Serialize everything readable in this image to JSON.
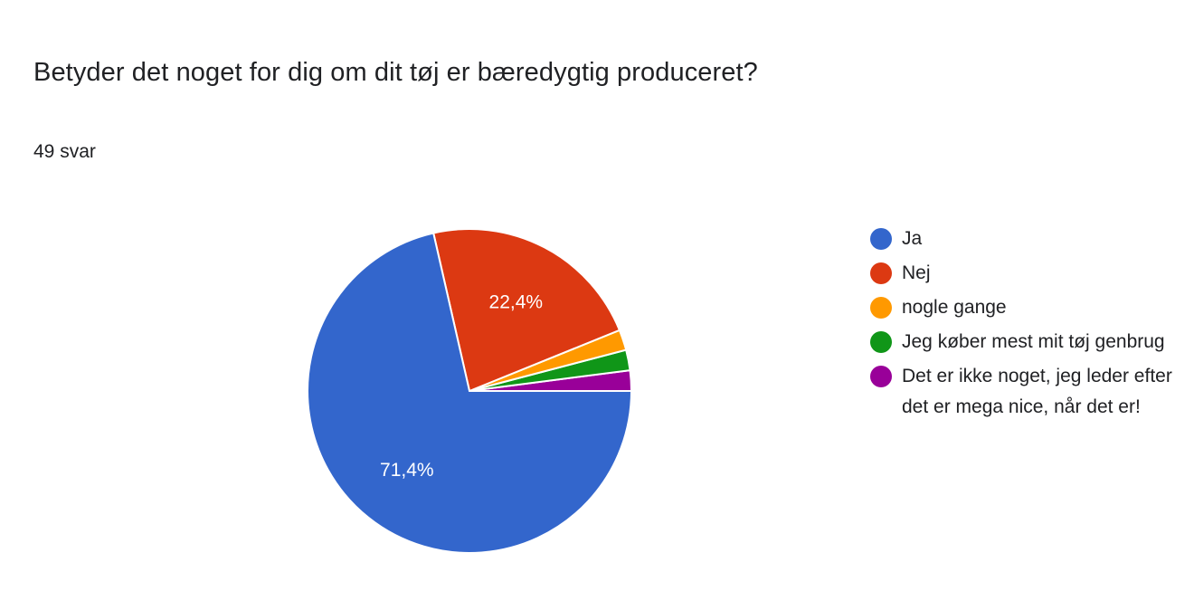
{
  "header": {
    "title": "Betyder det noget for dig om dit tøj er bæredygtig produceret?",
    "response_count": "49 svar"
  },
  "colors": {
    "ja": "#3366cc",
    "nej": "#dc3912",
    "nogle_gange": "#ff9900",
    "genbrug": "#109618",
    "ikke_noget": "#990099"
  },
  "chart_data": {
    "type": "pie",
    "title": "Betyder det noget for dig om dit tøj er bæredygtig produceret?",
    "total_responses": 49,
    "legend_position": "right",
    "slices": [
      {
        "label": "Ja",
        "value": 35,
        "percent": 71.4,
        "percent_label": "71,4%",
        "color": "#3366cc"
      },
      {
        "label": "Nej",
        "value": 11,
        "percent": 22.4,
        "percent_label": "22,4%",
        "color": "#dc3912"
      },
      {
        "label": "nogle gange",
        "value": 1,
        "percent": 2.0,
        "percent_label": "",
        "color": "#ff9900"
      },
      {
        "label": "Jeg køber mest mit tøj genbrug",
        "value": 1,
        "percent": 2.0,
        "percent_label": "",
        "color": "#109618"
      },
      {
        "label": "Det er ikke noget, jeg leder efter",
        "label_line2": "det er mega nice, når det er!",
        "value": 1,
        "percent": 2.0,
        "percent_label": "",
        "color": "#990099"
      }
    ]
  }
}
